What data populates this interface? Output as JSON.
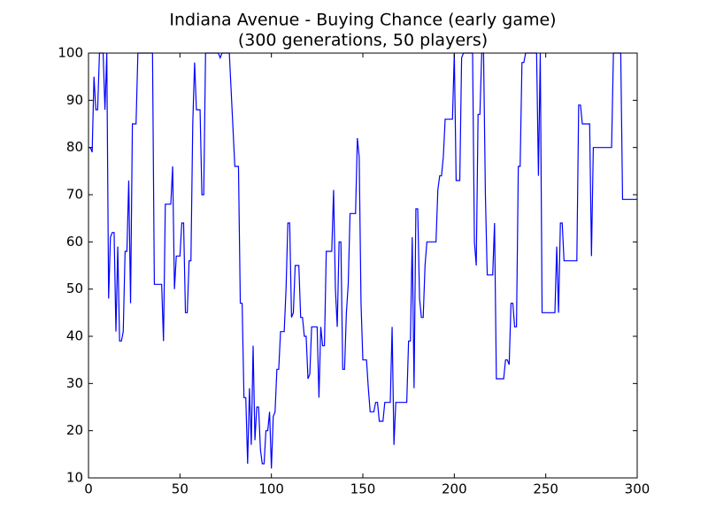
{
  "chart_data": {
    "type": "line",
    "title": "Indiana Avenue - Buying Chance (early game)",
    "subtitle": "(300 generations, 50 players)",
    "x": [
      0,
      1,
      2,
      3,
      4,
      5,
      6,
      8,
      9,
      10,
      11,
      12,
      13,
      14,
      15,
      16,
      17,
      18,
      19,
      20,
      21,
      22,
      23,
      24,
      26,
      27,
      35,
      36,
      40,
      41,
      42,
      45,
      46,
      47,
      48,
      50,
      51,
      52,
      53,
      54,
      55,
      56,
      57,
      58,
      59,
      61,
      62,
      63,
      64,
      71,
      72,
      73,
      77,
      80,
      82,
      83,
      84,
      85,
      86,
      87,
      88,
      89,
      90,
      91,
      92,
      93,
      94,
      95,
      96,
      97,
      98,
      99,
      100,
      101,
      102,
      103,
      104,
      105,
      107,
      108,
      109,
      110,
      111,
      112,
      113,
      115,
      116,
      117,
      118,
      119,
      120,
      121,
      122,
      125,
      126,
      127,
      128,
      129,
      130,
      133,
      134,
      135,
      136,
      137,
      138,
      139,
      140,
      141,
      142,
      143,
      146,
      147,
      148,
      149,
      150,
      152,
      153,
      154,
      156,
      157,
      158,
      159,
      161,
      162,
      165,
      166,
      167,
      168,
      174,
      175,
      176,
      177,
      178,
      179,
      180,
      181,
      182,
      183,
      184,
      185,
      190,
      191,
      192,
      193,
      194,
      195,
      199,
      200,
      201,
      203,
      204,
      205,
      210,
      211,
      212,
      213,
      214,
      215,
      216,
      217,
      218,
      221,
      222,
      223,
      227,
      228,
      229,
      230,
      231,
      232,
      233,
      234,
      235,
      236,
      237,
      238,
      239,
      245,
      246,
      247,
      248,
      255,
      256,
      257,
      258,
      259,
      260,
      267,
      268,
      269,
      270,
      274,
      275,
      276,
      286,
      287,
      291,
      292,
      300
    ],
    "series": [
      {
        "name": "Buying chance",
        "color": "#0000ff",
        "values": [
          80,
          80,
          79,
          95,
          88,
          88,
          100,
          100,
          88,
          100,
          48,
          61,
          62,
          62,
          41,
          59,
          39,
          39,
          41,
          58,
          58,
          73,
          47,
          85,
          85,
          100,
          100,
          51,
          51,
          39,
          68,
          68,
          76,
          50,
          57,
          57,
          64,
          64,
          45,
          45,
          56,
          56,
          85,
          98,
          88,
          88,
          70,
          70,
          100,
          100,
          99,
          100,
          100,
          76,
          76,
          47,
          47,
          27,
          27,
          13,
          29,
          17,
          38,
          18,
          25,
          25,
          16,
          13,
          13,
          20,
          20,
          24,
          12,
          23,
          24,
          33,
          33,
          41,
          41,
          50,
          64,
          64,
          44,
          45,
          55,
          55,
          44,
          44,
          40,
          40,
          31,
          32,
          42,
          42,
          27,
          42,
          38,
          38,
          58,
          58,
          71,
          50,
          42,
          60,
          60,
          33,
          33,
          45,
          51,
          66,
          66,
          82,
          78,
          47,
          35,
          35,
          29,
          24,
          24,
          26,
          26,
          22,
          22,
          26,
          26,
          42,
          17,
          26,
          26,
          39,
          39,
          61,
          29,
          67,
          67,
          48,
          44,
          44,
          55,
          60,
          60,
          71,
          74,
          74,
          78,
          86,
          86,
          100,
          73,
          73,
          99,
          100,
          100,
          60,
          55,
          87,
          87,
          100,
          100,
          70,
          53,
          53,
          64,
          31,
          31,
          35,
          35,
          34,
          47,
          47,
          42,
          42,
          76,
          76,
          98,
          98,
          100,
          100,
          74,
          100,
          45,
          45,
          59,
          45,
          64,
          64,
          56,
          56,
          89,
          89,
          85,
          85,
          57,
          80,
          80,
          100,
          100,
          69,
          69
        ]
      }
    ],
    "xlim": [
      0,
      300
    ],
    "xticks": [
      0,
      50,
      100,
      150,
      200,
      250,
      300
    ],
    "ylim": [
      10,
      100
    ],
    "yticks": [
      10,
      20,
      30,
      40,
      50,
      60,
      70,
      80,
      90,
      100
    ]
  }
}
